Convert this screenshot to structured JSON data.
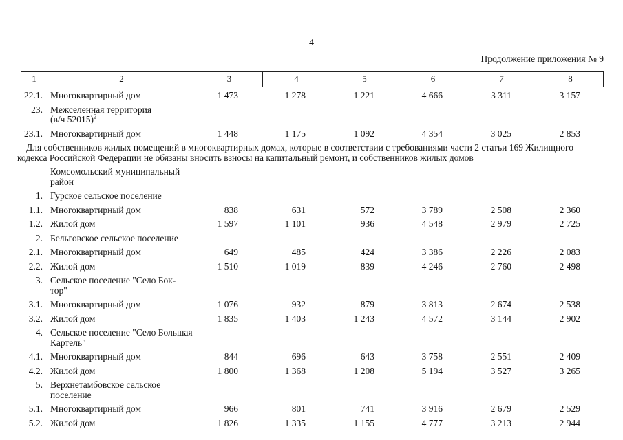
{
  "page": {
    "number": "4",
    "continuation_label": "Продолжение приложения № 9"
  },
  "table": {
    "column_numbers": [
      "1",
      "2",
      "3",
      "4",
      "5",
      "6",
      "7",
      "8"
    ],
    "rows": [
      {
        "type": "data",
        "num": "22.1.",
        "name": "Многоквартирный дом",
        "values": [
          "1 473",
          "1 278",
          "1 221",
          "4 666",
          "3 311",
          "3 157"
        ]
      },
      {
        "type": "section",
        "num": "23.",
        "name": "Межселенная территория",
        "name2": "(в/ч 52015)",
        "sup": "2"
      },
      {
        "type": "data",
        "num": "23.1.",
        "name": "Многоквартирный дом",
        "values": [
          "1 448",
          "1 175",
          "1 092",
          "4 354",
          "3 025",
          "2 853"
        ]
      },
      {
        "type": "note",
        "text": "Для собственников жилых помещений в многоквартирных домах, которые в соответствии с требованиями части 2 статьи 169 Жилищного кодекса Российской Федерации не обязаны вносить взносы на капитальный ремонт, и собственников жилых домов"
      },
      {
        "type": "section",
        "num": "",
        "name": "Комсомольский муниципальный район"
      },
      {
        "type": "section",
        "num": "1.",
        "name": "Гурское сельское поселение"
      },
      {
        "type": "data",
        "num": "1.1.",
        "name": "Многоквартирный дом",
        "values": [
          "838",
          "631",
          "572",
          "3 789",
          "2 508",
          "2 360"
        ]
      },
      {
        "type": "data",
        "num": "1.2.",
        "name": "Жилой дом",
        "values": [
          "1 597",
          "1 101",
          "936",
          "4 548",
          "2 979",
          "2 725"
        ]
      },
      {
        "type": "section",
        "num": "2.",
        "name": "Бельговское сельское поселение"
      },
      {
        "type": "data",
        "num": "2.1.",
        "name": "Многоквартирный дом",
        "values": [
          "649",
          "485",
          "424",
          "3 386",
          "2 226",
          "2 083"
        ]
      },
      {
        "type": "data",
        "num": "2.2.",
        "name": "Жилой дом",
        "values": [
          "1 510",
          "1 019",
          "839",
          "4 246",
          "2 760",
          "2 498"
        ]
      },
      {
        "type": "section",
        "num": "3.",
        "name": "Сельское поселение \"Село Бок-тор\""
      },
      {
        "type": "data",
        "num": "3.1.",
        "name": "Многоквартирный дом",
        "values": [
          "1 076",
          "932",
          "879",
          "3 813",
          "2 674",
          "2 538"
        ]
      },
      {
        "type": "data",
        "num": "3.2.",
        "name": "Жилой дом",
        "values": [
          "1 835",
          "1 403",
          "1 243",
          "4 572",
          "3 144",
          "2 902"
        ]
      },
      {
        "type": "section",
        "num": "4.",
        "name": "Сельское поселение \"Село Большая Картель\""
      },
      {
        "type": "data",
        "num": "4.1.",
        "name": "Многоквартирный дом",
        "values": [
          "844",
          "696",
          "643",
          "3 758",
          "2 551",
          "2 409"
        ]
      },
      {
        "type": "data",
        "num": "4.2.",
        "name": "Жилой дом",
        "values": [
          "1 800",
          "1 368",
          "1 208",
          "5 194",
          "3 527",
          "3 265"
        ]
      },
      {
        "type": "section",
        "num": "5.",
        "name": "Верхнетамбовское сельское поселение"
      },
      {
        "type": "data",
        "num": "5.1.",
        "name": "Многоквартирный дом",
        "values": [
          "966",
          "801",
          "741",
          "3 916",
          "2 679",
          "2 529"
        ]
      },
      {
        "type": "data",
        "num": "5.2.",
        "name": "Жилой дом",
        "values": [
          "1 826",
          "1 335",
          "1 155",
          "4 777",
          "3 213",
          "2 944"
        ]
      }
    ]
  }
}
